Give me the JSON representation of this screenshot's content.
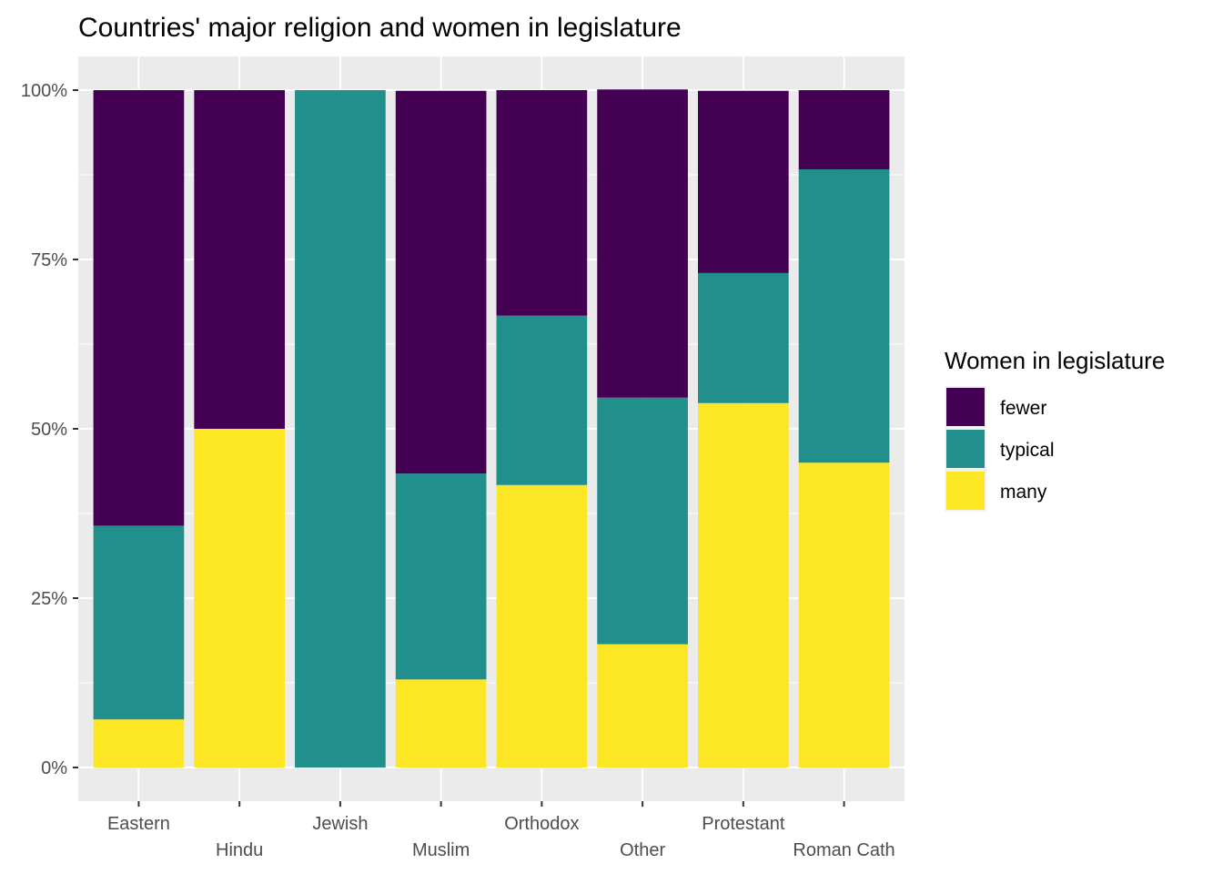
{
  "chart_data": {
    "type": "bar",
    "stacked": "fill",
    "title": "Countries' major religion and women in legislature",
    "xlabel": "",
    "ylabel": "",
    "ylim": [
      0,
      1
    ],
    "y_ticks": [
      0,
      0.25,
      0.5,
      0.75,
      1.0
    ],
    "y_tick_labels": [
      "0%",
      "25%",
      "50%",
      "75%",
      "100%"
    ],
    "grid": true,
    "categories": [
      "Eastern",
      "Hindu",
      "Jewish",
      "Muslim",
      "Orthodox",
      "Other",
      "Protestant",
      "Roman Cath"
    ],
    "legend": {
      "title": "Women in legislature",
      "position": "right",
      "entries": [
        "fewer",
        "typical",
        "many"
      ]
    },
    "series": [
      {
        "name": "fewer",
        "color": "#440154",
        "values": [
          0.643,
          0.5,
          0.0,
          0.565,
          0.333,
          0.455,
          0.269,
          0.117
        ]
      },
      {
        "name": "typical",
        "color": "#21908C",
        "values": [
          0.286,
          0.0,
          1.0,
          0.304,
          0.25,
          0.364,
          0.192,
          0.433
        ]
      },
      {
        "name": "many",
        "color": "#FDE725",
        "values": [
          0.071,
          0.5,
          0.0,
          0.13,
          0.417,
          0.182,
          0.538,
          0.45
        ]
      }
    ]
  }
}
